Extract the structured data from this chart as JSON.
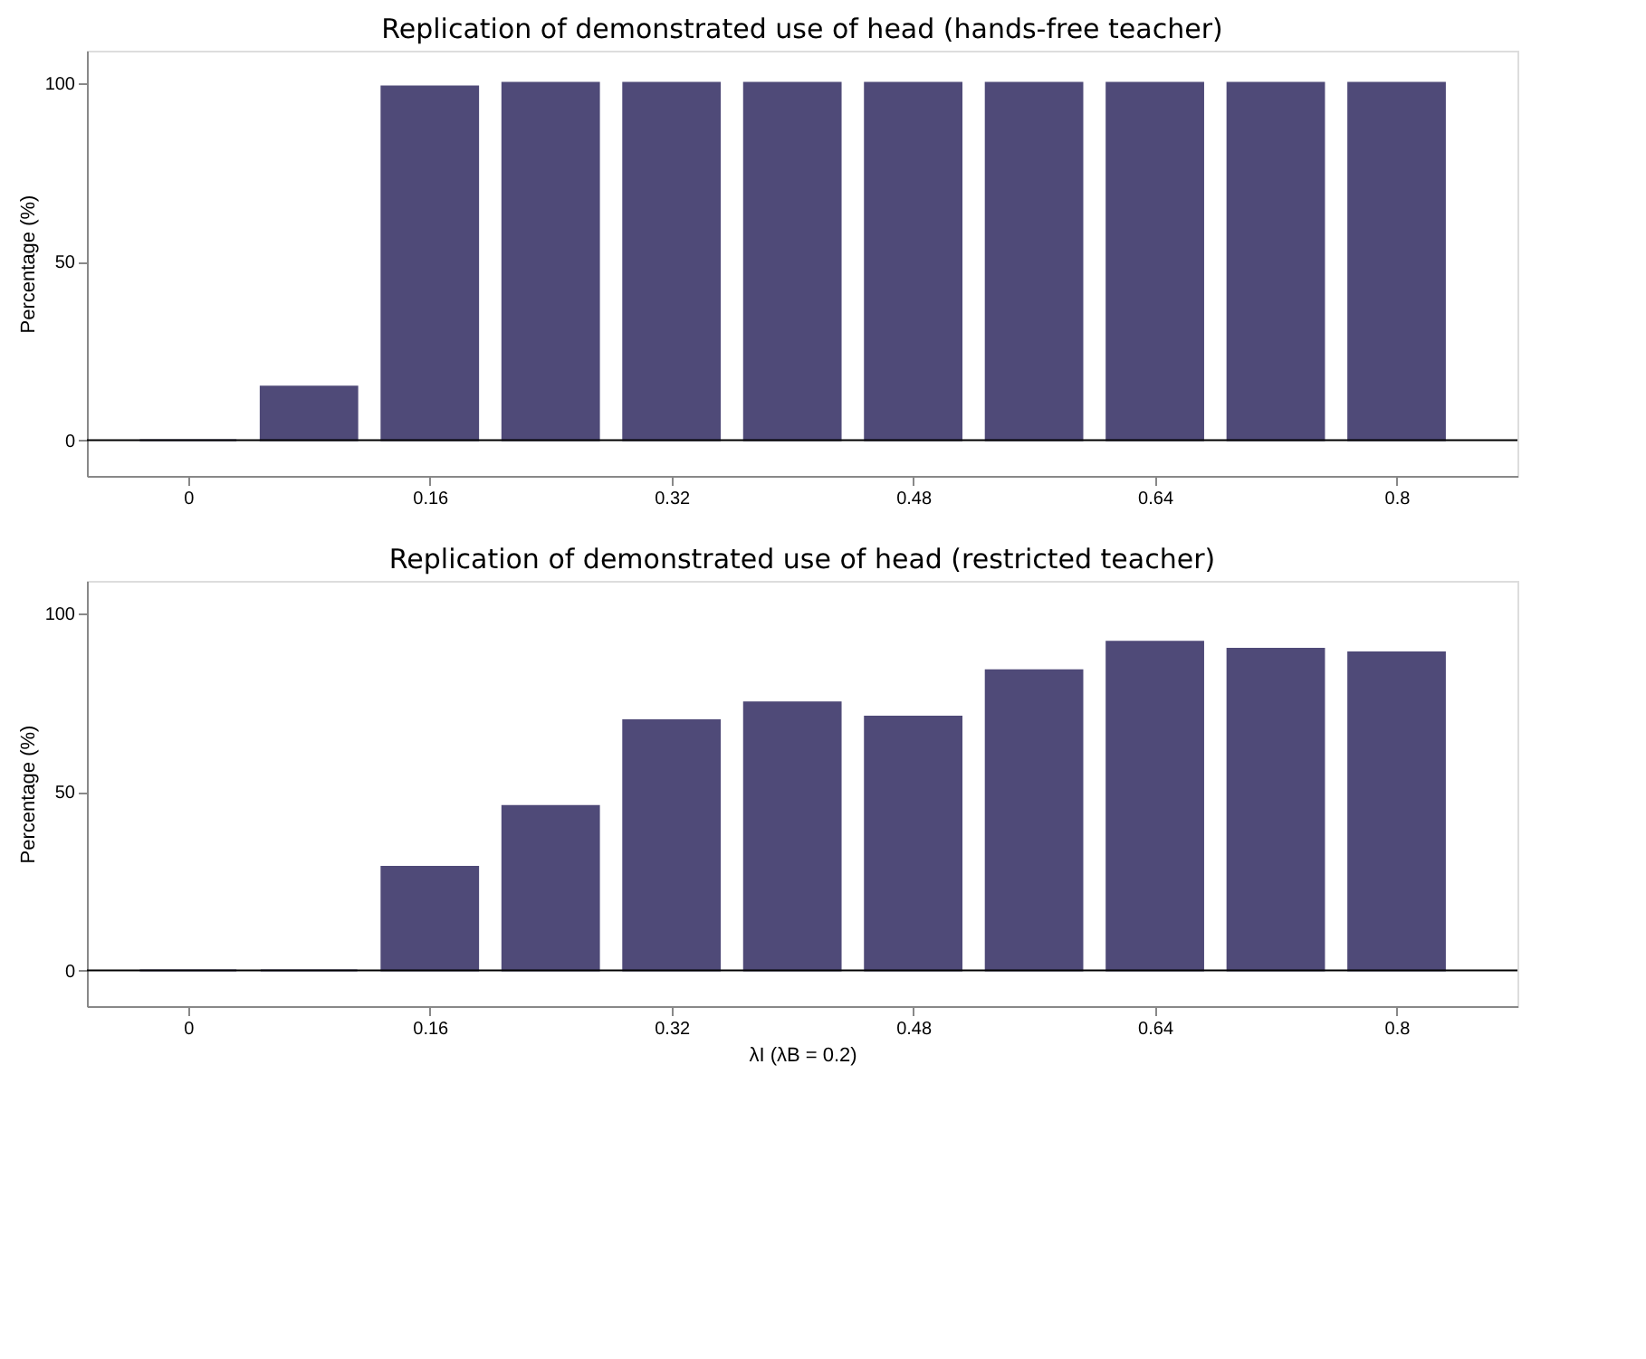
{
  "chart_data": [
    {
      "type": "bar",
      "title": "Replication of demonstrated use of head (hands-free teacher)",
      "ylabel": "Percentage (%)",
      "x": [
        0,
        0.08,
        0.16,
        0.24,
        0.32,
        0.4,
        0.48,
        0.56,
        0.64,
        0.72,
        0.8
      ],
      "series": [
        {
          "color": "#4f4a78",
          "values": [
            0,
            15,
            99,
            100,
            100,
            100,
            100,
            100,
            100,
            100,
            100
          ]
        }
      ],
      "xlim": [
        -0.067,
        0.88
      ],
      "xticks": [
        0,
        0.16,
        0.32,
        0.48,
        0.64,
        0.8
      ],
      "ylim": [
        -10,
        109
      ],
      "yticks": [
        0,
        50,
        100
      ],
      "grid": false,
      "legend": false,
      "ref_lines": [
        {
          "axis": "y",
          "value": 0,
          "label": null
        }
      ]
    },
    {
      "type": "bar",
      "title": "Replication of demonstrated use of head (restricted teacher)",
      "ylabel": "Percentage (%)",
      "xlabel": "λI (λB = 0.2)",
      "x": [
        0,
        0.08,
        0.16,
        0.24,
        0.32,
        0.4,
        0.48,
        0.56,
        0.64,
        0.72,
        0.8
      ],
      "series": [
        {
          "color": "#4f4a78",
          "values": [
            0,
            0,
            29,
            46,
            70,
            75,
            71,
            84,
            92,
            90,
            89
          ]
        }
      ],
      "xlim": [
        -0.067,
        0.88
      ],
      "xticks": [
        0,
        0.16,
        0.32,
        0.48,
        0.64,
        0.8
      ],
      "ylim": [
        -10,
        109
      ],
      "yticks": [
        0,
        50,
        100
      ],
      "grid": false,
      "legend": false,
      "ref_lines": [
        {
          "axis": "y",
          "value": 0,
          "label": null
        }
      ]
    }
  ]
}
